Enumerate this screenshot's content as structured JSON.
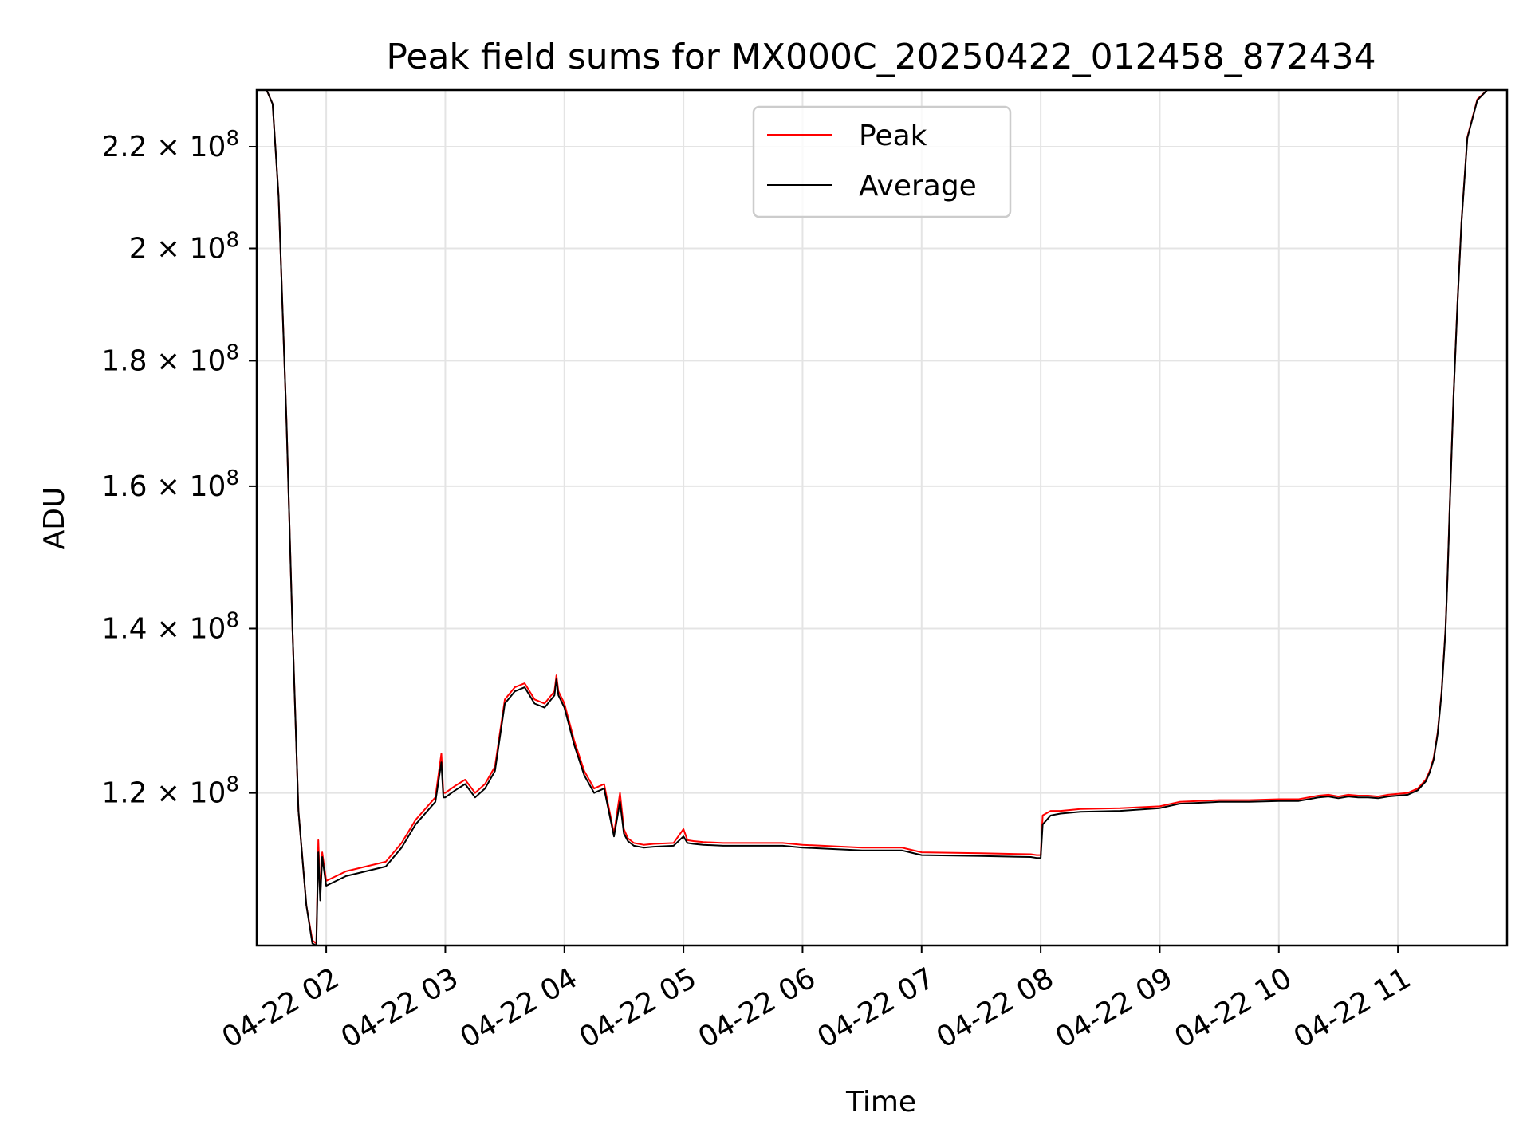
{
  "chart_data": {
    "type": "line",
    "title": "Peak field sums for MX000C_20250422_012458_872434",
    "xlabel": "Time",
    "ylabel": "ADU",
    "grid": true,
    "legend_position": "top-center",
    "x_unit": "hours on 2025-04-22",
    "xlim": [
      "04-22 01:25",
      "04-22 11:55"
    ],
    "ylim": [
      104000000,
      232000000
    ],
    "x_ticks": [
      "04-22 02",
      "04-22 03",
      "04-22 04",
      "04-22 05",
      "04-22 06",
      "04-22 07",
      "04-22 08",
      "04-22 09",
      "04-22 10",
      "04-22 11"
    ],
    "y_ticks": [
      {
        "value": 120000000,
        "mantissa": "1.2",
        "base": "10",
        "exponent": "8"
      },
      {
        "value": 140000000,
        "mantissa": "1.4",
        "base": "10",
        "exponent": "8"
      },
      {
        "value": 160000000,
        "mantissa": "1.6",
        "base": "10",
        "exponent": "8"
      },
      {
        "value": 180000000,
        "mantissa": "1.8",
        "base": "10",
        "exponent": "8"
      },
      {
        "value": 200000000,
        "mantissa": "2",
        "base": "10",
        "exponent": "8"
      },
      {
        "value": 220000000,
        "mantissa": "2.2",
        "base": "10",
        "exponent": "8"
      }
    ],
    "colors": {
      "Peak": "#ff0000",
      "Average": "#000000",
      "grid": "#e4e4e4",
      "axes": "#000000"
    },
    "series": [
      {
        "name": "Peak",
        "x": [
          "01:25",
          "01:30",
          "01:33",
          "01:36",
          "01:40",
          "01:43",
          "01:46",
          "01:50",
          "01:53",
          "01:55",
          "01:56",
          "01:57",
          "01:58",
          "02:00",
          "02:10",
          "02:20",
          "02:30",
          "02:38",
          "02:45",
          "02:55",
          "02:58",
          "02:59",
          "03:00",
          "03:05",
          "03:10",
          "03:15",
          "03:20",
          "03:25",
          "03:30",
          "03:35",
          "03:40",
          "03:45",
          "03:50",
          "03:55",
          "03:56",
          "03:57",
          "04:00",
          "04:05",
          "04:10",
          "04:15",
          "04:20",
          "04:25",
          "04:28",
          "04:30",
          "04:32",
          "04:35",
          "04:40",
          "04:45",
          "04:55",
          "05:00",
          "05:02",
          "05:05",
          "05:10",
          "05:20",
          "05:30",
          "05:50",
          "06:00",
          "06:30",
          "06:50",
          "07:00",
          "07:30",
          "07:55",
          "07:58",
          "08:00",
          "08:01",
          "08:05",
          "08:10",
          "08:20",
          "08:40",
          "09:00",
          "09:10",
          "09:30",
          "09:45",
          "10:00",
          "10:10",
          "10:15",
          "10:20",
          "10:25",
          "10:30",
          "10:35",
          "10:40",
          "10:45",
          "10:50",
          "10:55",
          "11:00",
          "11:05",
          "11:10",
          "11:12",
          "11:14",
          "11:16",
          "11:18",
          "11:20",
          "11:22",
          "11:24",
          "11:25",
          "11:26",
          "11:28",
          "11:30",
          "11:32",
          "11:35",
          "11:40",
          "11:45",
          "11:55"
        ],
        "y": [
          232000000,
          232000000,
          229000000,
          210000000,
          170000000,
          140000000,
          118000000,
          108000000,
          104500000,
          104200000,
          114800000,
          109000000,
          113500000,
          110500000,
          111500000,
          112000000,
          112500000,
          114500000,
          117000000,
          119500000,
          124500000,
          120000000,
          120000000,
          120800000,
          121500000,
          120000000,
          121000000,
          123000000,
          131000000,
          132500000,
          133000000,
          131000000,
          130500000,
          132000000,
          134000000,
          132000000,
          130500000,
          126000000,
          122500000,
          120500000,
          121000000,
          115500000,
          120000000,
          116000000,
          115000000,
          114500000,
          114300000,
          114400000,
          114500000,
          116000000,
          114800000,
          114700000,
          114600000,
          114500000,
          114500000,
          114500000,
          114300000,
          114000000,
          114000000,
          113500000,
          113400000,
          113300000,
          113200000,
          113200000,
          117500000,
          118000000,
          118000000,
          118200000,
          118300000,
          118500000,
          119000000,
          119200000,
          119200000,
          119300000,
          119300000,
          119500000,
          119700000,
          119800000,
          119600000,
          119800000,
          119700000,
          119700000,
          119600000,
          119800000,
          119900000,
          120000000,
          120500000,
          121000000,
          121500000,
          122500000,
          124000000,
          127000000,
          132000000,
          140000000,
          147000000,
          156000000,
          174000000,
          190000000,
          205000000,
          222000000,
          230000000,
          232000000,
          232000000
        ]
      },
      {
        "name": "Average",
        "x": [
          "01:25",
          "01:30",
          "01:33",
          "01:36",
          "01:40",
          "01:43",
          "01:46",
          "01:50",
          "01:53",
          "01:55",
          "01:56",
          "01:57",
          "01:58",
          "02:00",
          "02:10",
          "02:20",
          "02:30",
          "02:38",
          "02:45",
          "02:55",
          "02:58",
          "02:59",
          "03:00",
          "03:05",
          "03:10",
          "03:15",
          "03:20",
          "03:25",
          "03:30",
          "03:35",
          "03:40",
          "03:45",
          "03:50",
          "03:55",
          "03:56",
          "03:57",
          "04:00",
          "04:05",
          "04:10",
          "04:15",
          "04:20",
          "04:25",
          "04:28",
          "04:30",
          "04:32",
          "04:35",
          "04:40",
          "04:45",
          "04:55",
          "05:00",
          "05:02",
          "05:05",
          "05:10",
          "05:20",
          "05:30",
          "05:50",
          "06:00",
          "06:30",
          "06:50",
          "07:00",
          "07:30",
          "07:55",
          "07:58",
          "08:00",
          "08:01",
          "08:05",
          "08:10",
          "08:20",
          "08:40",
          "09:00",
          "09:10",
          "09:30",
          "09:45",
          "10:00",
          "10:10",
          "10:15",
          "10:20",
          "10:25",
          "10:30",
          "10:35",
          "10:40",
          "10:45",
          "10:50",
          "10:55",
          "11:00",
          "11:05",
          "11:10",
          "11:12",
          "11:14",
          "11:16",
          "11:18",
          "11:20",
          "11:22",
          "11:24",
          "11:25",
          "11:26",
          "11:28",
          "11:30",
          "11:32",
          "11:35",
          "11:40",
          "11:45",
          "11:55"
        ],
        "y": [
          232000000,
          232000000,
          229000000,
          210000000,
          170000000,
          140000000,
          118000000,
          108000000,
          104200000,
          104000000,
          113500000,
          108500000,
          113000000,
          110000000,
          111000000,
          111500000,
          112000000,
          114000000,
          116500000,
          119000000,
          123500000,
          119500000,
          119500000,
          120300000,
          121000000,
          119500000,
          120500000,
          122500000,
          130500000,
          132000000,
          132500000,
          130500000,
          130000000,
          131500000,
          133500000,
          131500000,
          130000000,
          125500000,
          122000000,
          120000000,
          120500000,
          115200000,
          119000000,
          115500000,
          114700000,
          114200000,
          114000000,
          114100000,
          114200000,
          115200000,
          114500000,
          114400000,
          114300000,
          114200000,
          114200000,
          114200000,
          114000000,
          113700000,
          113700000,
          113200000,
          113100000,
          113000000,
          112900000,
          112900000,
          116500000,
          117500000,
          117700000,
          117900000,
          118000000,
          118300000,
          118800000,
          119000000,
          119000000,
          119100000,
          119100000,
          119300000,
          119500000,
          119600000,
          119400000,
          119600000,
          119500000,
          119500000,
          119400000,
          119600000,
          119700000,
          119800000,
          120300000,
          120800000,
          121300000,
          122300000,
          123800000,
          126800000,
          131800000,
          139800000,
          146800000,
          155800000,
          173800000,
          189800000,
          204800000,
          221800000,
          229800000,
          232000000,
          232000000
        ]
      }
    ]
  }
}
